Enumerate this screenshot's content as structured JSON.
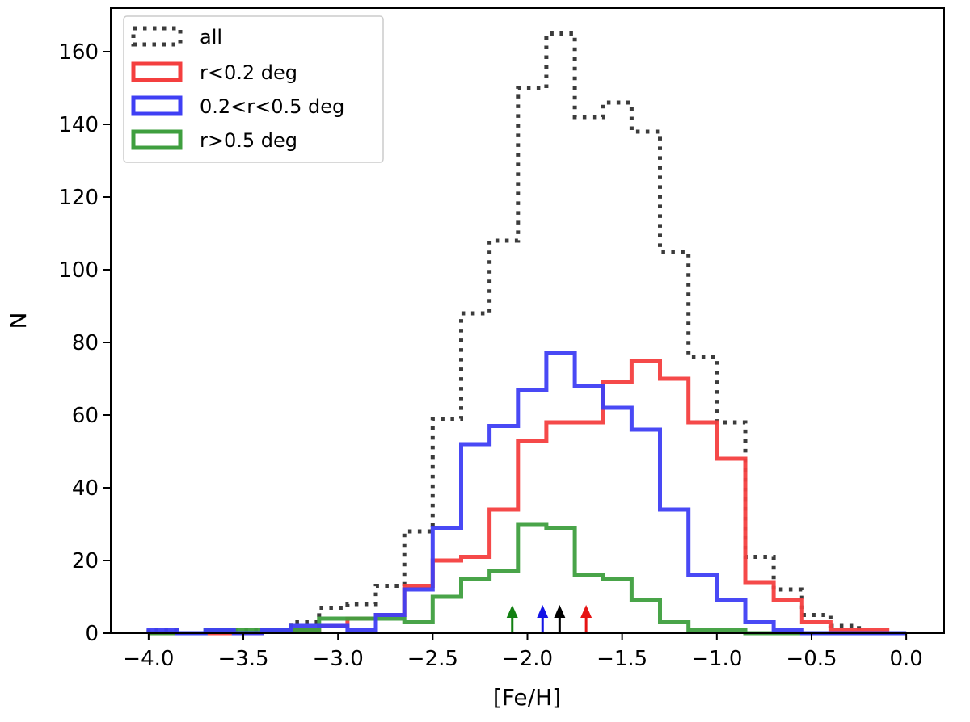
{
  "chart_data": {
    "type": "histogram-step",
    "title": "",
    "xlabel": "[Fe/H]",
    "ylabel": "N",
    "xlim": [
      -4.2,
      0.2
    ],
    "ylim": [
      0,
      172
    ],
    "xticks": [
      -4.0,
      -3.5,
      -3.0,
      -2.5,
      -2.0,
      -1.5,
      -1.0,
      -0.5,
      0.0
    ],
    "xtick_labels": [
      "−4.0",
      "−3.5",
      "−3.0",
      "−2.5",
      "−2.0",
      "−1.5",
      "−1.0",
      "−0.5",
      "0.0"
    ],
    "yticks": [
      0,
      20,
      40,
      60,
      80,
      100,
      120,
      140,
      160
    ],
    "ytick_labels": [
      "0",
      "20",
      "40",
      "60",
      "80",
      "100",
      "120",
      "140",
      "160"
    ],
    "legend_position": "top-left",
    "bin_edges": [
      -4.0,
      -3.85,
      -3.7,
      -3.55,
      -3.4,
      -3.25,
      -3.1,
      -2.95,
      -2.8,
      -2.65,
      -2.5,
      -2.35,
      -2.2,
      -2.05,
      -1.9,
      -1.75,
      -1.6,
      -1.45,
      -1.3,
      -1.15,
      -1.0,
      -0.85,
      -0.7,
      -0.55,
      -0.4,
      -0.25,
      -0.1,
      0.0
    ],
    "series": [
      {
        "name": "all",
        "label": "all",
        "color": "#3b3b3b",
        "dash": "dotted",
        "values": [
          1,
          0,
          1,
          1,
          1,
          3,
          7,
          8,
          13,
          28,
          59,
          88,
          108,
          150,
          165,
          142,
          146,
          138,
          105,
          76,
          58,
          21,
          12,
          5,
          2,
          0,
          0
        ]
      },
      {
        "name": "r<0.2 deg",
        "label": "r<0.2 deg",
        "color": "#f43f3f",
        "dash": "solid",
        "values": [
          0,
          0,
          0,
          0,
          1,
          1,
          2,
          4,
          5,
          13,
          20,
          21,
          34,
          53,
          58,
          58,
          69,
          75,
          70,
          58,
          48,
          14,
          9,
          3,
          1,
          1,
          0
        ]
      },
      {
        "name": "0.2<r<0.5 deg",
        "label": "0.2<r<0.5 deg",
        "color": "#3f3ff4",
        "dash": "solid",
        "values": [
          1,
          0,
          1,
          0,
          1,
          2,
          2,
          1,
          5,
          12,
          29,
          52,
          57,
          67,
          77,
          68,
          62,
          56,
          34,
          16,
          9,
          3,
          1,
          0,
          0,
          0,
          0
        ]
      },
      {
        "name": "r>0.5 deg",
        "label": "r>0.5 deg",
        "color": "#3f9f3f",
        "dash": "solid",
        "values": [
          0,
          0,
          1,
          1,
          1,
          1,
          4,
          4,
          4,
          3,
          10,
          15,
          17,
          30,
          29,
          16,
          15,
          9,
          3,
          1,
          1,
          0,
          0,
          0,
          0,
          0,
          0
        ]
      }
    ],
    "mean_markers": [
      {
        "name": "r>0.5 deg",
        "x": -2.08,
        "color": "#128012"
      },
      {
        "name": "0.2<r<0.5 deg",
        "x": -1.92,
        "color": "#1414e6"
      },
      {
        "name": "all",
        "x": -1.83,
        "color": "#000000"
      },
      {
        "name": "r<0.2 deg",
        "x": -1.69,
        "color": "#e61414"
      }
    ]
  }
}
